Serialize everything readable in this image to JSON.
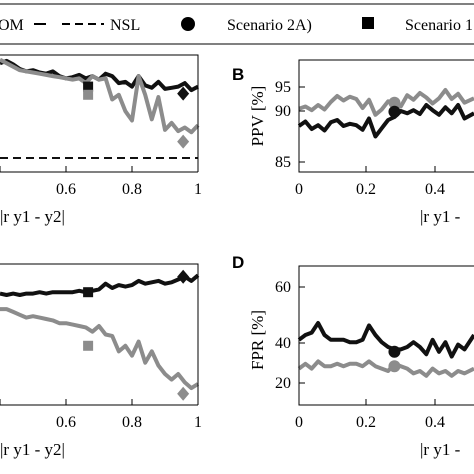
{
  "legend": {
    "items": [
      {
        "label": "OM",
        "style": "solid"
      },
      {
        "label": "NSL",
        "style": "dashed"
      },
      {
        "label": "Scenario 2A)",
        "marker": "circle"
      },
      {
        "label": "Scenario 1",
        "marker": "square"
      }
    ]
  },
  "panels": {
    "A": {
      "letter": "",
      "xlabel": "|r y1 - y2|",
      "ticks_x": [
        "",
        "0.6",
        "0.8",
        "1"
      ]
    },
    "B": {
      "letter": "B",
      "ylabel": "PPV [%]",
      "xlabel": "|r y1 -",
      "ticks_x": [
        "0",
        "0.2",
        "0.4"
      ],
      "ticks_y": [
        "85",
        "90",
        "95"
      ]
    },
    "C": {
      "letter": "",
      "xlabel": "|r y1 - y2|",
      "ticks_x": [
        "",
        "0.6",
        "0.8",
        "1"
      ]
    },
    "D": {
      "letter": "D",
      "ylabel": "FPR [%]",
      "xlabel": "|r y1 -",
      "ticks_x": [
        "0",
        "0.2",
        "0.4"
      ],
      "ticks_y": [
        "20",
        "40",
        "60"
      ]
    }
  },
  "colors": {
    "black_series": "#111111",
    "gray_series": "#8c8c8c",
    "axis": "#000000"
  },
  "chart_data": [
    {
      "panel": "A",
      "type": "line",
      "xlim": [
        0.4,
        1.0
      ],
      "ylim": [
        0,
        1
      ],
      "series": [
        {
          "name": "OM",
          "color": "#111111",
          "x": [
            0.4,
            0.42,
            0.44,
            0.46,
            0.48,
            0.5,
            0.52,
            0.54,
            0.56,
            0.58,
            0.6,
            0.62,
            0.64,
            0.66,
            0.68,
            0.7,
            0.72,
            0.74,
            0.76,
            0.78,
            0.8,
            0.82,
            0.84,
            0.86,
            0.88,
            0.9,
            0.92,
            0.94,
            0.96,
            0.98,
            1.0
          ],
          "y": [
            0.93,
            0.95,
            0.92,
            0.88,
            0.86,
            0.87,
            0.85,
            0.84,
            0.86,
            0.82,
            0.8,
            0.81,
            0.83,
            0.8,
            0.82,
            0.79,
            0.84,
            0.82,
            0.76,
            0.77,
            0.73,
            0.82,
            0.74,
            0.72,
            0.77,
            0.71,
            0.72,
            0.73,
            0.76,
            0.7,
            0.73
          ]
        },
        {
          "name": "",
          "color": "#8c8c8c",
          "x": [
            0.4,
            0.42,
            0.44,
            0.46,
            0.48,
            0.5,
            0.52,
            0.54,
            0.56,
            0.58,
            0.6,
            0.62,
            0.64,
            0.66,
            0.68,
            0.7,
            0.72,
            0.74,
            0.76,
            0.78,
            0.8,
            0.82,
            0.84,
            0.86,
            0.88,
            0.9,
            0.92,
            0.94,
            0.96,
            0.98,
            1.0
          ],
          "y": [
            0.96,
            0.93,
            0.9,
            0.87,
            0.86,
            0.85,
            0.84,
            0.83,
            0.82,
            0.81,
            0.8,
            0.79,
            0.8,
            0.76,
            0.82,
            0.79,
            0.8,
            0.62,
            0.66,
            0.52,
            0.44,
            0.82,
            0.66,
            0.45,
            0.64,
            0.36,
            0.42,
            0.35,
            0.38,
            0.34,
            0.4
          ]
        },
        {
          "name": "NSL",
          "color": "#111111",
          "style": "dashed",
          "x": [
            0.4,
            1.0
          ],
          "y": [
            0.12,
            0.12
          ]
        }
      ],
      "markers": [
        {
          "shape": "square",
          "color": "#111111",
          "x": 0.667,
          "y": 0.73
        },
        {
          "shape": "square",
          "color": "#8c8c8c",
          "x": 0.667,
          "y": 0.66
        },
        {
          "shape": "diamond",
          "color": "#111111",
          "x": 0.955,
          "y": 0.67
        },
        {
          "shape": "diamond",
          "color": "#8c8c8c",
          "x": 0.955,
          "y": 0.26
        }
      ]
    },
    {
      "panel": "B",
      "type": "line",
      "xlim": [
        0,
        0.55
      ],
      "ylim": [
        85,
        97
      ],
      "series": [
        {
          "name": "",
          "color": "#111111",
          "x": [
            0.0,
            0.02,
            0.04,
            0.06,
            0.08,
            0.1,
            0.12,
            0.14,
            0.16,
            0.18,
            0.2,
            0.22,
            0.24,
            0.26,
            0.28,
            0.3,
            0.32,
            0.34,
            0.36,
            0.38,
            0.4,
            0.42,
            0.44,
            0.46,
            0.48,
            0.5,
            0.52,
            0.55
          ],
          "y": [
            89.8,
            90.4,
            89.4,
            89.9,
            89.2,
            90.3,
            90.6,
            89.8,
            90.1,
            89.9,
            89.3,
            90.8,
            88.4,
            89.5,
            90.6,
            91.0,
            91.8,
            91.5,
            91.9,
            91.4,
            92.6,
            91.9,
            91.3,
            92.3,
            91.5,
            92.6,
            90.8,
            91.5
          ]
        },
        {
          "name": "",
          "color": "#8c8c8c",
          "x": [
            0.0,
            0.02,
            0.04,
            0.06,
            0.08,
            0.1,
            0.12,
            0.14,
            0.16,
            0.18,
            0.2,
            0.22,
            0.24,
            0.26,
            0.28,
            0.3,
            0.32,
            0.34,
            0.36,
            0.38,
            0.4,
            0.42,
            0.44,
            0.46,
            0.48,
            0.5,
            0.52,
            0.55
          ],
          "y": [
            92.1,
            92.4,
            91.9,
            92.6,
            92.0,
            93.0,
            93.8,
            93.2,
            93.7,
            93.4,
            92.2,
            93.3,
            91.3,
            92.0,
            93.1,
            92.9,
            92.4,
            93.9,
            93.3,
            94.2,
            93.6,
            92.8,
            93.5,
            94.6,
            93.4,
            94.1,
            92.9,
            93.5
          ]
        }
      ],
      "markers": [
        {
          "shape": "circle",
          "color": "#8c8c8c",
          "x": 0.3,
          "y": 92.9
        },
        {
          "shape": "circle",
          "color": "#111111",
          "x": 0.3,
          "y": 91.7
        }
      ]
    },
    {
      "panel": "C",
      "type": "line",
      "xlim": [
        0.4,
        1.0
      ],
      "ylim": [
        0,
        1
      ],
      "series": [
        {
          "name": "",
          "color": "#111111",
          "x": [
            0.4,
            0.42,
            0.44,
            0.46,
            0.48,
            0.5,
            0.52,
            0.54,
            0.56,
            0.58,
            0.6,
            0.62,
            0.64,
            0.66,
            0.68,
            0.7,
            0.72,
            0.74,
            0.76,
            0.78,
            0.8,
            0.82,
            0.84,
            0.86,
            0.88,
            0.9,
            0.92,
            0.94,
            0.96,
            0.98,
            1.0
          ],
          "y": [
            0.79,
            0.78,
            0.79,
            0.78,
            0.79,
            0.79,
            0.8,
            0.79,
            0.8,
            0.8,
            0.8,
            0.8,
            0.81,
            0.8,
            0.81,
            0.82,
            0.86,
            0.83,
            0.85,
            0.84,
            0.85,
            0.88,
            0.86,
            0.87,
            0.88,
            0.86,
            0.87,
            0.89,
            0.91,
            0.88,
            0.92
          ]
        },
        {
          "name": "",
          "color": "#8c8c8c",
          "x": [
            0.4,
            0.42,
            0.44,
            0.46,
            0.48,
            0.5,
            0.52,
            0.54,
            0.56,
            0.58,
            0.6,
            0.62,
            0.64,
            0.66,
            0.68,
            0.7,
            0.72,
            0.74,
            0.76,
            0.78,
            0.8,
            0.82,
            0.84,
            0.86,
            0.88,
            0.9,
            0.92,
            0.94,
            0.96,
            0.98,
            1.0
          ],
          "y": [
            0.68,
            0.68,
            0.66,
            0.64,
            0.62,
            0.63,
            0.62,
            0.61,
            0.6,
            0.58,
            0.58,
            0.57,
            0.56,
            0.55,
            0.52,
            0.56,
            0.5,
            0.49,
            0.38,
            0.42,
            0.35,
            0.45,
            0.3,
            0.38,
            0.28,
            0.22,
            0.18,
            0.22,
            0.16,
            0.12,
            0.15
          ]
        }
      ],
      "markers": [
        {
          "shape": "square",
          "color": "#111111",
          "x": 0.667,
          "y": 0.8
        },
        {
          "shape": "square",
          "color": "#8c8c8c",
          "x": 0.667,
          "y": 0.42
        },
        {
          "shape": "diamond",
          "color": "#111111",
          "x": 0.955,
          "y": 0.91
        },
        {
          "shape": "diamond",
          "color": "#8c8c8c",
          "x": 0.955,
          "y": 0.08
        }
      ]
    },
    {
      "panel": "D",
      "type": "line",
      "xlim": [
        0,
        0.55
      ],
      "ylim": [
        20,
        70
      ],
      "series": [
        {
          "name": "",
          "color": "#111111",
          "x": [
            0.0,
            0.02,
            0.04,
            0.06,
            0.08,
            0.1,
            0.12,
            0.14,
            0.16,
            0.18,
            0.2,
            0.22,
            0.24,
            0.26,
            0.28,
            0.3,
            0.32,
            0.34,
            0.36,
            0.38,
            0.4,
            0.42,
            0.44,
            0.46,
            0.48,
            0.5,
            0.52,
            0.55
          ],
          "y": [
            38,
            40,
            41,
            45,
            40,
            38,
            38,
            38,
            37,
            37,
            38,
            44,
            40,
            37,
            35,
            34,
            34,
            35,
            37,
            35,
            32,
            38,
            33,
            37,
            31,
            36,
            34,
            40
          ]
        },
        {
          "name": "",
          "color": "#8c8c8c",
          "x": [
            0.0,
            0.02,
            0.04,
            0.06,
            0.08,
            0.1,
            0.12,
            0.14,
            0.16,
            0.18,
            0.2,
            0.22,
            0.24,
            0.26,
            0.28,
            0.3,
            0.32,
            0.34,
            0.36,
            0.38,
            0.4,
            0.42,
            0.44,
            0.46,
            0.48,
            0.5,
            0.52,
            0.55
          ],
          "y": [
            26,
            28,
            26,
            29,
            27,
            27,
            28,
            27,
            28,
            28,
            27,
            29,
            27,
            26,
            25,
            28,
            27,
            26,
            24,
            25,
            23,
            26,
            24,
            25,
            23,
            25,
            24,
            26
          ]
        }
      ],
      "markers": [
        {
          "shape": "circle",
          "color": "#111111",
          "x": 0.3,
          "y": 33
        },
        {
          "shape": "circle",
          "color": "#8c8c8c",
          "x": 0.3,
          "y": 27
        }
      ]
    }
  ]
}
